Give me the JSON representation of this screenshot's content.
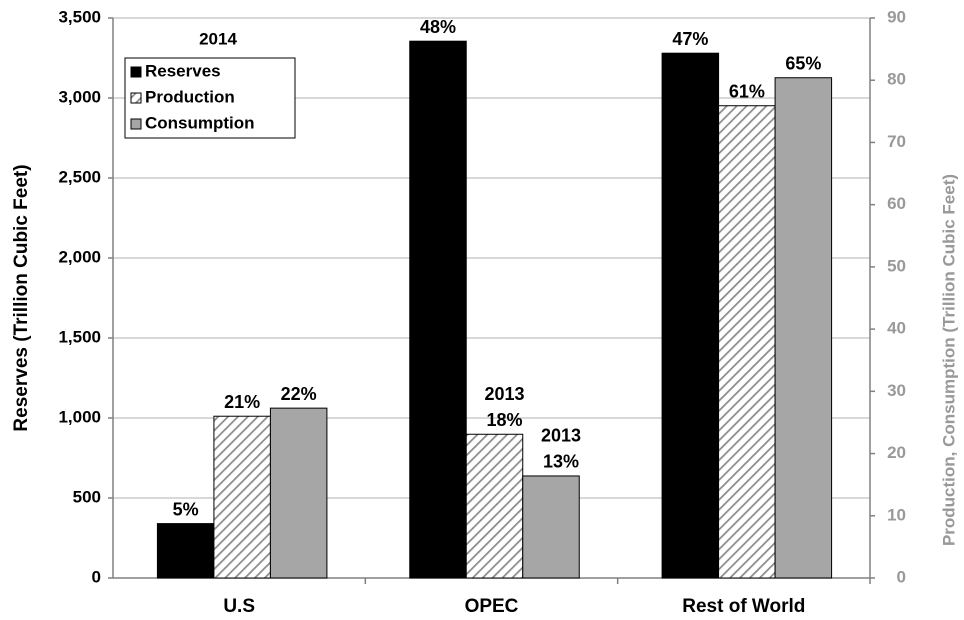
{
  "chart_data": {
    "type": "bar",
    "annotation": "2014",
    "categories": [
      "U.S",
      "OPEC",
      "Rest of World"
    ],
    "ylabel": "Reserves (Trillion Cubic Feet)",
    "y2label": "Production, Consumption (Trillion Cubic Feet)",
    "ylim": [
      0,
      3500
    ],
    "yticks": [
      0,
      {
        "value": 500,
        "label": "500"
      },
      {
        "value": 1000,
        "label": "1,000"
      },
      {
        "value": 1500,
        "label": "1,500"
      },
      {
        "value": 2000,
        "label": "2,000"
      },
      {
        "value": 2500,
        "label": "2,500"
      },
      {
        "value": 3000,
        "label": "3,000"
      },
      {
        "value": 3500,
        "label": "3,500"
      }
    ],
    "y2lim": [
      0,
      90
    ],
    "y2ticks": [
      0,
      10,
      20,
      30,
      40,
      50,
      60,
      70,
      80,
      90
    ],
    "grid": true,
    "legend": "upper left",
    "series": [
      {
        "name": "Reserves",
        "color": "#000000",
        "values": [
          340,
          3355,
          3280
        ],
        "labels": [
          "5%",
          "48%",
          "47%"
        ],
        "year_labels": [
          null,
          null,
          null
        ]
      },
      {
        "name": "Production",
        "color": "#a0a0a0",
        "hatch": true,
        "axis": "y2",
        "values": [
          26.0,
          23.1,
          75.9
        ],
        "labels": [
          "21%",
          "18%",
          "61%"
        ],
        "year_labels": [
          null,
          "2013",
          null
        ]
      },
      {
        "name": "Consumption",
        "color": "#a6a6a6",
        "axis": "y2",
        "values": [
          27.3,
          16.4,
          80.4
        ],
        "labels": [
          "22%",
          "13%",
          "65%"
        ],
        "year_labels": [
          null,
          "2013",
          null
        ]
      }
    ]
  }
}
